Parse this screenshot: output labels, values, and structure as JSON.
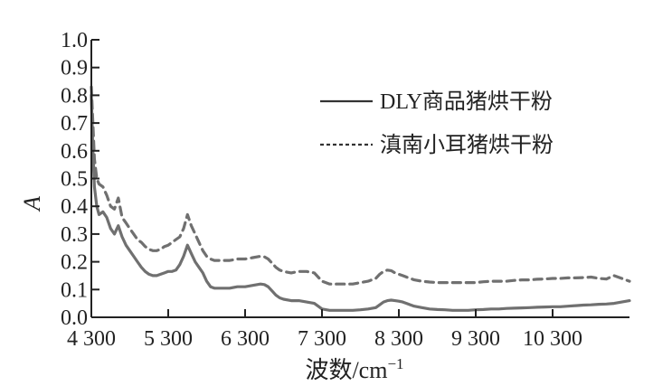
{
  "chart_data": {
    "type": "line",
    "xlabel": "波数/cm",
    "xlabel_sup": "−1",
    "ylabel": "A",
    "xlim": [
      4300,
      11300
    ],
    "ylim": [
      0,
      1.0
    ],
    "x_ticks": [
      4300,
      5300,
      6300,
      7300,
      8300,
      9300,
      10300
    ],
    "x_tick_labels": [
      "4 300",
      "5 300",
      "6 300",
      "7 300",
      "8 300",
      "9 300",
      "10 300"
    ],
    "y_ticks": [
      0,
      0.1,
      0.2,
      0.3,
      0.4,
      0.5,
      0.6,
      0.7,
      0.8,
      0.9,
      1.0
    ],
    "y_tick_labels": [
      "0.0",
      "0.1",
      "0.2",
      "0.3",
      "0.4",
      "0.5",
      "0.6",
      "0.7",
      "0.8",
      "0.9",
      "1.0"
    ],
    "grid": false,
    "legend_position": "top-right",
    "series": [
      {
        "name": "DLY商品猪烘干粉",
        "style": "solid",
        "color": "#707070",
        "x": [
          4300,
          4320,
          4340,
          4370,
          4400,
          4450,
          4500,
          4550,
          4600,
          4650,
          4700,
          4750,
          4800,
          4850,
          4900,
          4950,
          5000,
          5050,
          5100,
          5150,
          5200,
          5250,
          5300,
          5350,
          5400,
          5450,
          5500,
          5550,
          5600,
          5650,
          5700,
          5750,
          5800,
          5850,
          5900,
          5950,
          6000,
          6100,
          6200,
          6300,
          6400,
          6500,
          6550,
          6600,
          6650,
          6700,
          6750,
          6800,
          6900,
          7000,
          7100,
          7200,
          7250,
          7300,
          7400,
          7500,
          7600,
          7700,
          7800,
          7900,
          8000,
          8050,
          8100,
          8150,
          8200,
          8250,
          8300,
          8350,
          8400,
          8450,
          8500,
          8600,
          8700,
          8800,
          8900,
          9000,
          9100,
          9200,
          9300,
          9400,
          9500,
          9600,
          9700,
          9800,
          9900,
          10000,
          10100,
          10200,
          10300,
          10400,
          10500,
          10600,
          10700,
          10800,
          10900,
          11000,
          11100,
          11200,
          11300
        ],
        "values": [
          0.8,
          0.6,
          0.47,
          0.4,
          0.37,
          0.38,
          0.36,
          0.32,
          0.3,
          0.33,
          0.29,
          0.26,
          0.24,
          0.22,
          0.2,
          0.18,
          0.165,
          0.155,
          0.15,
          0.15,
          0.155,
          0.16,
          0.165,
          0.165,
          0.17,
          0.19,
          0.22,
          0.26,
          0.23,
          0.2,
          0.18,
          0.16,
          0.13,
          0.11,
          0.105,
          0.105,
          0.105,
          0.105,
          0.11,
          0.11,
          0.115,
          0.12,
          0.118,
          0.11,
          0.095,
          0.08,
          0.07,
          0.065,
          0.06,
          0.06,
          0.055,
          0.05,
          0.04,
          0.03,
          0.025,
          0.025,
          0.025,
          0.025,
          0.027,
          0.03,
          0.035,
          0.045,
          0.055,
          0.06,
          0.062,
          0.06,
          0.058,
          0.055,
          0.05,
          0.045,
          0.04,
          0.035,
          0.03,
          0.028,
          0.027,
          0.025,
          0.025,
          0.025,
          0.027,
          0.028,
          0.03,
          0.03,
          0.032,
          0.033,
          0.034,
          0.035,
          0.036,
          0.037,
          0.038,
          0.038,
          0.04,
          0.042,
          0.044,
          0.045,
          0.047,
          0.048,
          0.05,
          0.055,
          0.06
        ]
      },
      {
        "name": "滇南小耳猪烘干粉",
        "style": "dashed",
        "color": "#707070",
        "x": [
          4300,
          4320,
          4340,
          4370,
          4400,
          4450,
          4500,
          4550,
          4600,
          4650,
          4700,
          4750,
          4800,
          4850,
          4900,
          4950,
          5000,
          5050,
          5100,
          5150,
          5200,
          5250,
          5300,
          5350,
          5400,
          5450,
          5500,
          5550,
          5600,
          5650,
          5700,
          5750,
          5800,
          5850,
          5900,
          5950,
          6000,
          6100,
          6200,
          6300,
          6400,
          6500,
          6550,
          6600,
          6650,
          6700,
          6750,
          6800,
          6900,
          7000,
          7100,
          7200,
          7250,
          7300,
          7400,
          7500,
          7600,
          7700,
          7800,
          7900,
          8000,
          8050,
          8100,
          8150,
          8200,
          8250,
          8300,
          8350,
          8400,
          8450,
          8500,
          8600,
          8700,
          8800,
          8900,
          9000,
          9100,
          9200,
          9300,
          9400,
          9500,
          9600,
          9700,
          9800,
          9900,
          10000,
          10100,
          10200,
          10300,
          10400,
          10500,
          10600,
          10700,
          10800,
          10900,
          11000,
          11100,
          11200,
          11300
        ],
        "values": [
          0.83,
          0.7,
          0.57,
          0.5,
          0.48,
          0.47,
          0.44,
          0.4,
          0.39,
          0.43,
          0.36,
          0.34,
          0.32,
          0.3,
          0.28,
          0.27,
          0.255,
          0.245,
          0.24,
          0.24,
          0.245,
          0.255,
          0.26,
          0.27,
          0.28,
          0.29,
          0.32,
          0.37,
          0.33,
          0.3,
          0.27,
          0.24,
          0.22,
          0.21,
          0.205,
          0.205,
          0.205,
          0.205,
          0.21,
          0.21,
          0.215,
          0.22,
          0.218,
          0.21,
          0.195,
          0.18,
          0.17,
          0.165,
          0.16,
          0.165,
          0.165,
          0.16,
          0.145,
          0.13,
          0.12,
          0.12,
          0.12,
          0.12,
          0.125,
          0.13,
          0.14,
          0.155,
          0.165,
          0.17,
          0.168,
          0.16,
          0.155,
          0.15,
          0.145,
          0.14,
          0.135,
          0.13,
          0.127,
          0.125,
          0.125,
          0.125,
          0.125,
          0.125,
          0.125,
          0.128,
          0.13,
          0.13,
          0.13,
          0.133,
          0.135,
          0.135,
          0.137,
          0.138,
          0.14,
          0.14,
          0.142,
          0.142,
          0.143,
          0.145,
          0.14,
          0.138,
          0.15,
          0.14,
          0.13
        ]
      }
    ]
  }
}
